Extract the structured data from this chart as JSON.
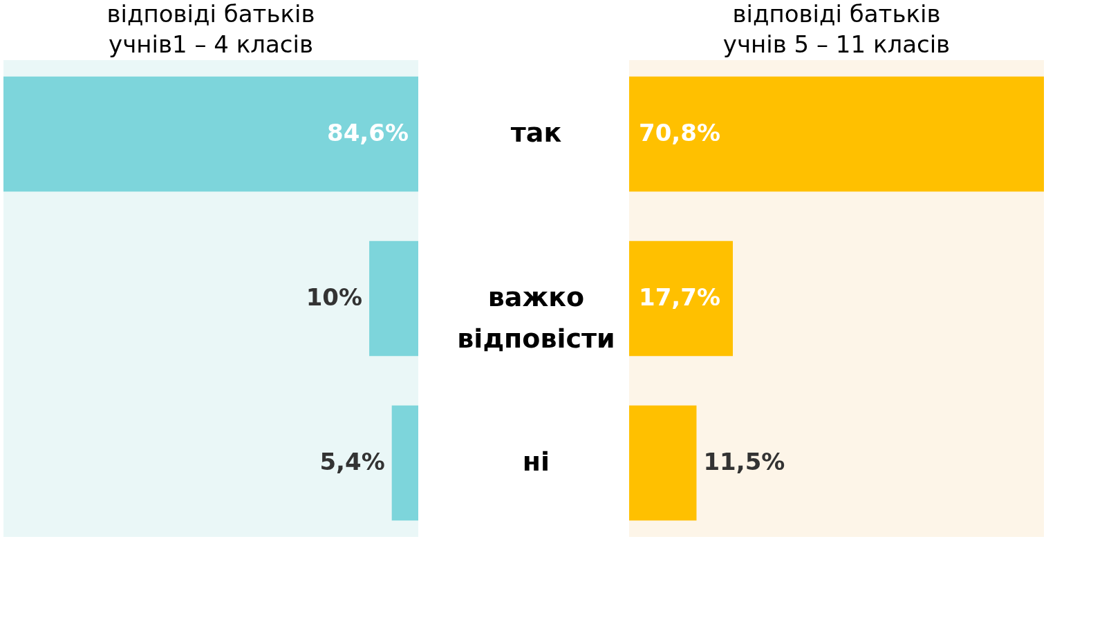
{
  "chart_data": [
    {
      "type": "bar",
      "orientation": "horizontal",
      "title": "відповіді батьків\nучнів1 – 4 класів",
      "categories": [
        "так",
        "важко відповісти",
        "ні"
      ],
      "values": [
        84.6,
        10,
        5.4
      ],
      "color": "#7dd5db",
      "value_labels": [
        "84,6%",
        "10%",
        "5,4%"
      ],
      "tick_labels": "y"
    },
    {
      "type": "bar",
      "orientation": "horizontal",
      "title": "відповіді батьків\nучнів 5 – 11 класів",
      "categories": [
        null,
        null,
        null
      ],
      "values": [
        70.8,
        17.7,
        11.5
      ],
      "color": "#ffc000",
      "value_labels": [
        "70,8%",
        "17,7%",
        "11,5%"
      ],
      "tick_labels": false
    }
  ]
}
